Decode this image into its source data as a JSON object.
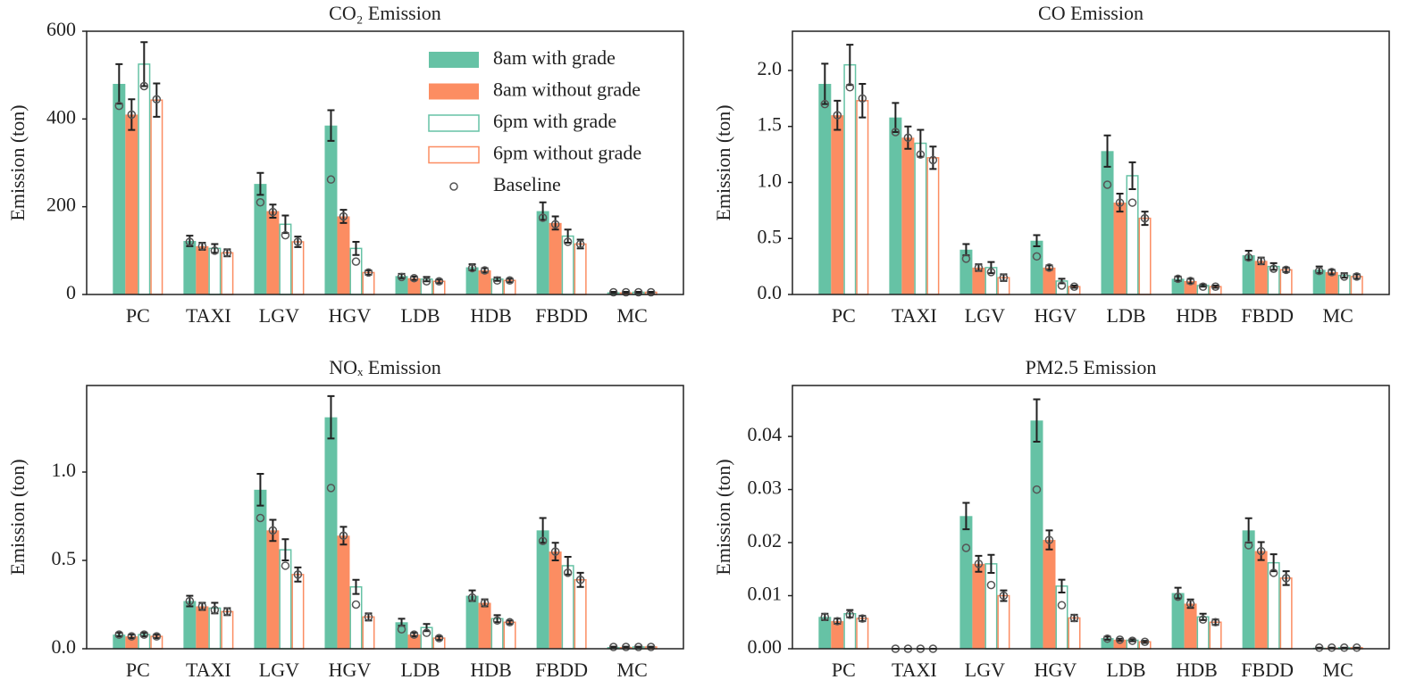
{
  "chart_data": [
    {
      "type": "bar",
      "title": "CO₂ Emission",
      "ylabel": "Emission (ton)",
      "legend": "upper right",
      "baseline_name": "Baseline",
      "categories": [
        "PC",
        "TAXI",
        "LGV",
        "HGV",
        "LDB",
        "HDB",
        "FBDD",
        "MC"
      ],
      "ylim": [
        0,
        600
      ],
      "yticks": [
        0,
        200,
        400,
        600
      ],
      "series": [
        {
          "name": "8am with grade",
          "color": "#66c2a5",
          "style": "filled",
          "values": [
            480,
            122,
            252,
            385,
            42,
            62,
            190,
            5
          ],
          "errors": [
            45,
            12,
            25,
            35,
            5,
            7,
            20,
            1
          ],
          "baseline": [
            430,
            120,
            210,
            262,
            40,
            60,
            175,
            5
          ]
        },
        {
          "name": "8am without grade",
          "color": "#fc8d62",
          "style": "filled",
          "values": [
            410,
            110,
            190,
            178,
            37,
            55,
            163,
            5
          ],
          "errors": [
            35,
            8,
            15,
            15,
            4,
            5,
            15,
            1
          ],
          "baseline": [
            410,
            110,
            188,
            178,
            37,
            55,
            160,
            5
          ]
        },
        {
          "name": "6pm with grade",
          "color": "#66c2a5",
          "style": "hollow",
          "values": [
            525,
            105,
            160,
            105,
            35,
            35,
            133,
            5
          ],
          "errors": [
            50,
            10,
            20,
            15,
            5,
            4,
            15,
            1
          ],
          "baseline": [
            475,
            100,
            135,
            75,
            30,
            32,
            120,
            5
          ]
        },
        {
          "name": "6pm without grade",
          "color": "#fc8d62",
          "style": "hollow",
          "values": [
            443,
            95,
            120,
            50,
            30,
            32,
            115,
            5
          ],
          "errors": [
            38,
            8,
            12,
            5,
            4,
            4,
            10,
            1
          ],
          "baseline": [
            445,
            95,
            120,
            50,
            30,
            32,
            115,
            5
          ]
        }
      ]
    },
    {
      "type": "bar",
      "title": "CO Emission",
      "ylabel": "Emission (ton)",
      "categories": [
        "PC",
        "TAXI",
        "LGV",
        "HGV",
        "LDB",
        "HDB",
        "FBDD",
        "MC"
      ],
      "ylim": [
        0,
        2.35
      ],
      "yticks": [
        {
          "value": 0,
          "label": "0.0"
        },
        {
          "value": 0.5,
          "label": "0.5"
        },
        {
          "value": 1,
          "label": "1.0"
        },
        {
          "value": 1.5,
          "label": "1.5"
        },
        {
          "value": 2,
          "label": "2.0"
        }
      ],
      "series": [
        {
          "color": "#66c2a5",
          "style": "filled",
          "values": [
            1.88,
            1.58,
            0.4,
            0.48,
            1.28,
            0.14,
            0.35,
            0.22
          ],
          "errors": [
            0.18,
            0.13,
            0.05,
            0.05,
            0.14,
            0.02,
            0.04,
            0.03
          ],
          "baseline": [
            1.7,
            1.45,
            0.32,
            0.34,
            0.98,
            0.14,
            0.33,
            0.21
          ]
        },
        {
          "color": "#fc8d62",
          "style": "filled",
          "values": [
            1.6,
            1.4,
            0.24,
            0.24,
            0.82,
            0.12,
            0.3,
            0.2
          ],
          "errors": [
            0.13,
            0.1,
            0.03,
            0.02,
            0.08,
            0.02,
            0.03,
            0.02
          ],
          "baseline": [
            1.6,
            1.4,
            0.24,
            0.24,
            0.82,
            0.12,
            0.3,
            0.2
          ]
        },
        {
          "color": "#66c2a5",
          "style": "hollow",
          "values": [
            2.05,
            1.35,
            0.24,
            0.12,
            1.06,
            0.08,
            0.25,
            0.17
          ],
          "errors": [
            0.18,
            0.12,
            0.05,
            0.02,
            0.12,
            0.01,
            0.03,
            0.02
          ],
          "baseline": [
            1.85,
            1.25,
            0.2,
            0.08,
            0.82,
            0.07,
            0.23,
            0.16
          ]
        },
        {
          "color": "#fc8d62",
          "style": "hollow",
          "values": [
            1.73,
            1.22,
            0.15,
            0.07,
            0.68,
            0.07,
            0.22,
            0.16
          ],
          "errors": [
            0.15,
            0.1,
            0.03,
            0.01,
            0.06,
            0.01,
            0.02,
            0.02
          ],
          "baseline": [
            1.75,
            1.2,
            0.15,
            0.07,
            0.68,
            0.07,
            0.22,
            0.16
          ]
        }
      ]
    },
    {
      "type": "bar",
      "title": "NOₓ Emission",
      "ylabel": "Emission (ton)",
      "categories": [
        "PC",
        "TAXI",
        "LGV",
        "HGV",
        "LDB",
        "HDB",
        "FBDD",
        "MC"
      ],
      "ylim": [
        0,
        1.49
      ],
      "yticks": [
        {
          "value": 0,
          "label": "0.0"
        },
        {
          "value": 0.5,
          "label": "0.5"
        },
        {
          "value": 1,
          "label": "1.0"
        }
      ],
      "series": [
        {
          "color": "#66c2a5",
          "style": "filled",
          "values": [
            0.08,
            0.27,
            0.9,
            1.31,
            0.15,
            0.3,
            0.67,
            0.01
          ],
          "errors": [
            0.01,
            0.03,
            0.09,
            0.12,
            0.02,
            0.03,
            0.07,
            0.002
          ],
          "baseline": [
            0.08,
            0.27,
            0.74,
            0.91,
            0.11,
            0.29,
            0.61,
            0.01
          ]
        },
        {
          "color": "#fc8d62",
          "style": "filled",
          "values": [
            0.07,
            0.24,
            0.67,
            0.64,
            0.08,
            0.26,
            0.55,
            0.01
          ],
          "errors": [
            0.01,
            0.02,
            0.06,
            0.05,
            0.01,
            0.02,
            0.05,
            0.002
          ],
          "baseline": [
            0.07,
            0.24,
            0.67,
            0.64,
            0.08,
            0.26,
            0.55,
            0.01
          ]
        },
        {
          "color": "#66c2a5",
          "style": "hollow",
          "values": [
            0.08,
            0.23,
            0.56,
            0.35,
            0.12,
            0.17,
            0.47,
            0.01
          ],
          "errors": [
            0.01,
            0.03,
            0.06,
            0.04,
            0.02,
            0.02,
            0.05,
            0.002
          ],
          "baseline": [
            0.08,
            0.22,
            0.47,
            0.25,
            0.09,
            0.16,
            0.43,
            0.01
          ]
        },
        {
          "color": "#fc8d62",
          "style": "hollow",
          "values": [
            0.07,
            0.21,
            0.42,
            0.18,
            0.06,
            0.15,
            0.39,
            0.01
          ],
          "errors": [
            0.01,
            0.02,
            0.04,
            0.02,
            0.01,
            0.01,
            0.04,
            0.002
          ],
          "baseline": [
            0.07,
            0.21,
            0.42,
            0.18,
            0.06,
            0.15,
            0.39,
            0.01
          ]
        }
      ]
    },
    {
      "type": "bar",
      "title": "PM2.5 Emission",
      "ylabel": "Emission (ton)",
      "categories": [
        "PC",
        "TAXI",
        "LGV",
        "HGV",
        "LDB",
        "HDB",
        "FBDD",
        "MC"
      ],
      "ylim": [
        0,
        0.0496
      ],
      "yticks": [
        {
          "value": 0,
          "label": "0.00"
        },
        {
          "value": 0.01,
          "label": "0.01"
        },
        {
          "value": 0.02,
          "label": "0.02"
        },
        {
          "value": 0.03,
          "label": "0.03"
        },
        {
          "value": 0.04,
          "label": "0.04"
        }
      ],
      "series": [
        {
          "color": "#66c2a5",
          "style": "filled",
          "values": [
            0.006,
            0,
            0.025,
            0.043,
            0.002,
            0.0105,
            0.0223,
            0.0002
          ],
          "errors": [
            0.0006,
            0,
            0.0025,
            0.004,
            0.0003,
            0.001,
            0.0023,
            0
          ],
          "baseline": [
            0.006,
            0,
            0.019,
            0.03,
            0.0019,
            0.0098,
            0.0195,
            0.0002
          ]
        },
        {
          "color": "#fc8d62",
          "style": "filled",
          "values": [
            0.0052,
            0,
            0.016,
            0.0205,
            0.0017,
            0.0085,
            0.0184,
            0.0002
          ],
          "errors": [
            0.0005,
            0,
            0.0015,
            0.0018,
            0.0002,
            0.0008,
            0.0017,
            0
          ],
          "baseline": [
            0.0052,
            0,
            0.016,
            0.0205,
            0.0017,
            0.0085,
            0.0184,
            0.0002
          ]
        },
        {
          "color": "#66c2a5",
          "style": "hollow",
          "values": [
            0.0066,
            0,
            0.016,
            0.0118,
            0.0016,
            0.006,
            0.0162,
            0.0002
          ],
          "errors": [
            0.0007,
            0,
            0.0017,
            0.0012,
            0.0002,
            0.0006,
            0.0016,
            0
          ],
          "baseline": [
            0.0064,
            0,
            0.012,
            0.0082,
            0.0015,
            0.0055,
            0.0143,
            0.0002
          ]
        },
        {
          "color": "#fc8d62",
          "style": "hollow",
          "values": [
            0.0057,
            0,
            0.01,
            0.0058,
            0.0013,
            0.005,
            0.0133,
            0.0002
          ],
          "errors": [
            0.0005,
            0,
            0.001,
            0.0006,
            0.0002,
            0.0005,
            0.0013,
            0
          ],
          "baseline": [
            0.0057,
            0,
            0.01,
            0.0058,
            0.0013,
            0.005,
            0.0133,
            0.0002
          ]
        }
      ]
    }
  ]
}
